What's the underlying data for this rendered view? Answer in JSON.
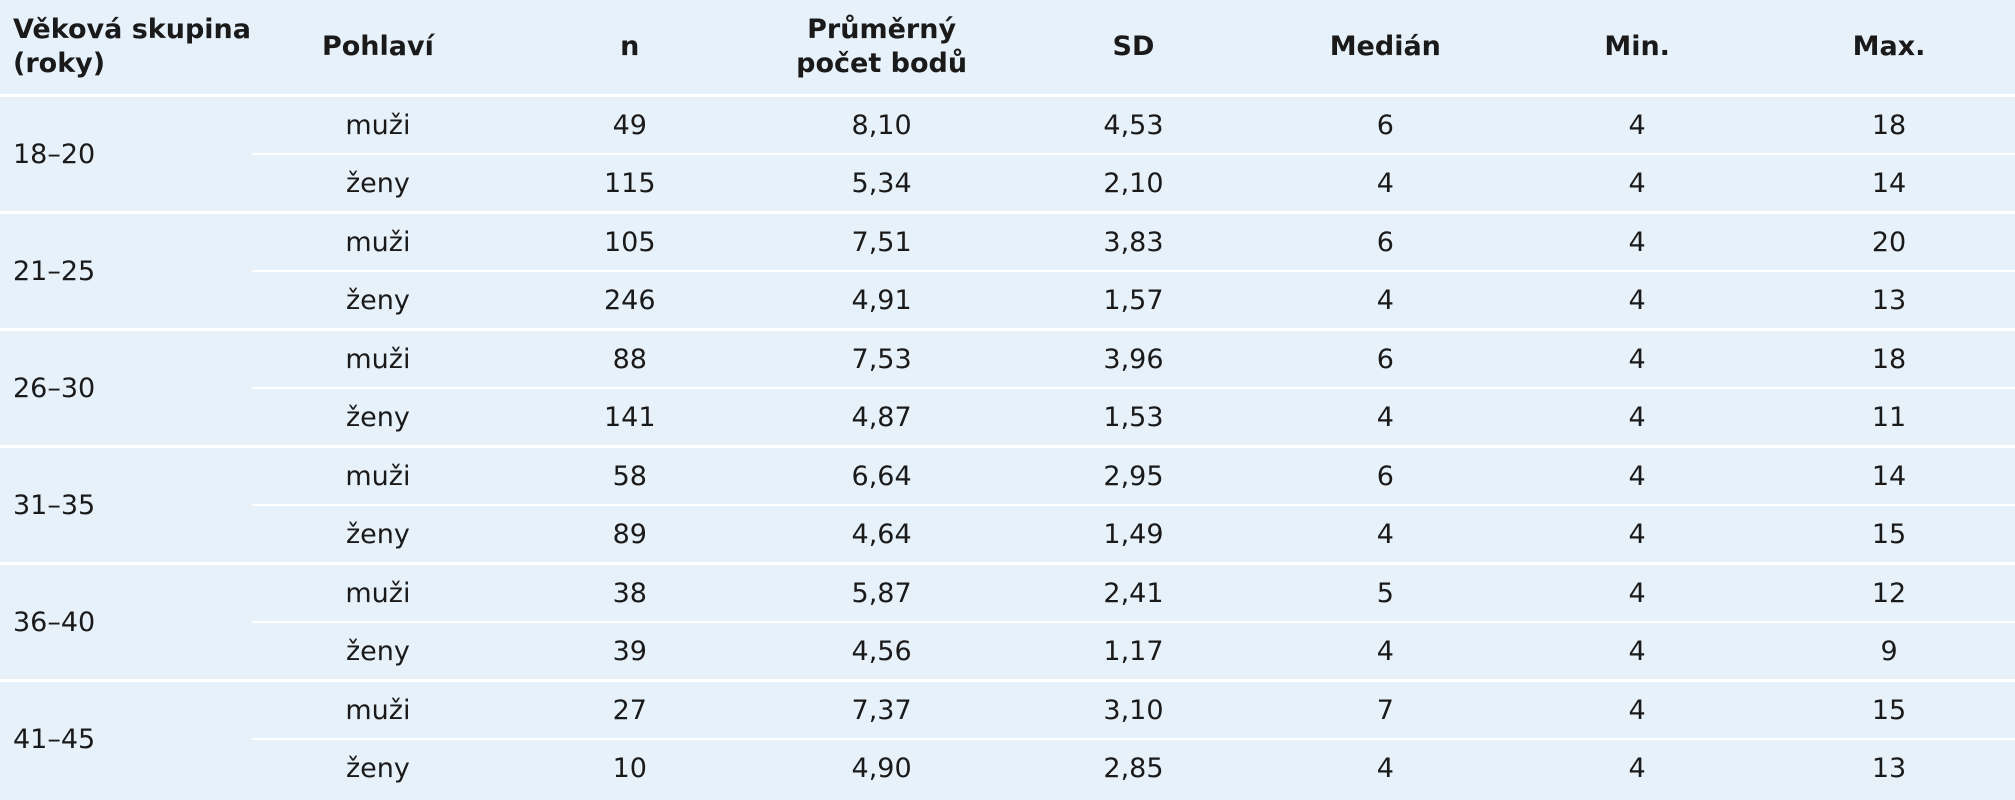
{
  "table": {
    "header": [
      "Věková skupina (roky)",
      "Pohlaví",
      "n",
      "Průměrný počet bodů",
      "SD",
      "Medián",
      "Min.",
      "Max."
    ],
    "groups": [
      {
        "age": "18–20",
        "rows": [
          [
            "muži",
            49,
            "8,10",
            "4,53",
            6,
            4,
            18
          ],
          [
            "ženy",
            115,
            "5,34",
            "2,10",
            4,
            4,
            14
          ]
        ]
      },
      {
        "age": "21–25",
        "rows": [
          [
            "muži",
            105,
            "7,51",
            "3,83",
            6,
            4,
            20
          ],
          [
            "ženy",
            246,
            "4,91",
            "1,57",
            4,
            4,
            13
          ]
        ]
      },
      {
        "age": "26–30",
        "rows": [
          [
            "muži",
            88,
            "7,53",
            "3,96",
            6,
            4,
            18
          ],
          [
            "ženy",
            141,
            "4,87",
            "1,53",
            4,
            4,
            11
          ]
        ]
      },
      {
        "age": "31–35",
        "rows": [
          [
            "muži",
            58,
            "6,64",
            "2,95",
            6,
            4,
            14
          ],
          [
            "ženy",
            89,
            "4,64",
            "1,49",
            4,
            4,
            15
          ]
        ]
      },
      {
        "age": "36–40",
        "rows": [
          [
            "muži",
            38,
            "5,87",
            "2,41",
            5,
            4,
            12
          ],
          [
            "ženy",
            39,
            "4,56",
            "1,17",
            4,
            4,
            9
          ]
        ]
      },
      {
        "age": "41–45",
        "rows": [
          [
            "muži",
            27,
            "7,37",
            "3,10",
            7,
            4,
            15
          ],
          [
            "ženy",
            10,
            "4,90",
            "2,85",
            4,
            4,
            13
          ]
        ]
      }
    ]
  }
}
